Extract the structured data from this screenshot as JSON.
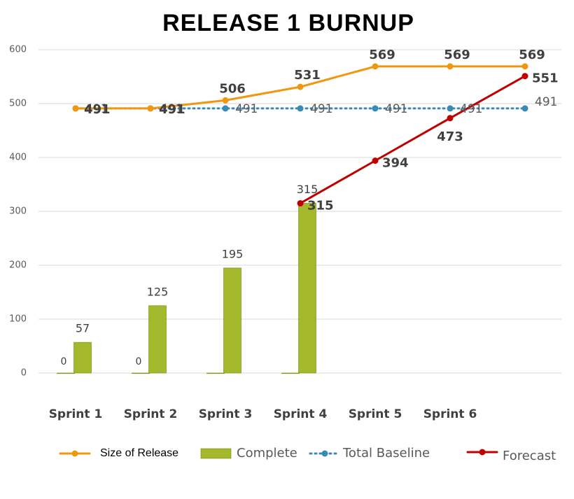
{
  "chart_data": {
    "type": "combo",
    "title": "RELEASE 1 BURNUP",
    "categories": [
      "Sprint 1",
      "Sprint 2",
      "Sprint 3",
      "Sprint 4",
      "Sprint 5",
      "Sprint 6",
      null
    ],
    "ylim": [
      0,
      600
    ],
    "yticks": [
      0,
      100,
      200,
      300,
      400,
      500,
      600
    ],
    "grid": true,
    "legend": "bottom",
    "series": [
      {
        "name": "Size of Release",
        "type": "line",
        "color": "#f0960f",
        "values": [
          491,
          491,
          506,
          531,
          569,
          569,
          569
        ]
      },
      {
        "name": "Complete",
        "type": "bar",
        "color": "#a3b82a",
        "values": [
          57,
          125,
          195,
          315,
          null,
          null,
          null
        ]
      },
      {
        "name": "Total Baseline",
        "type": "line",
        "style": "dotted",
        "color": "#3a8ab8",
        "values": [
          491,
          491,
          491,
          491,
          491,
          491,
          491
        ]
      },
      {
        "name": "Forecast",
        "type": "line",
        "color": "#c00000",
        "values": [
          null,
          null,
          null,
          315,
          394,
          473,
          551
        ]
      },
      {
        "type": "bar",
        "color": "#a3b82a",
        "values": [
          0,
          0,
          0,
          0,
          null,
          null,
          null
        ],
        "value_labels": [
          "0",
          "0",
          null,
          null,
          null,
          null,
          null
        ]
      }
    ]
  }
}
